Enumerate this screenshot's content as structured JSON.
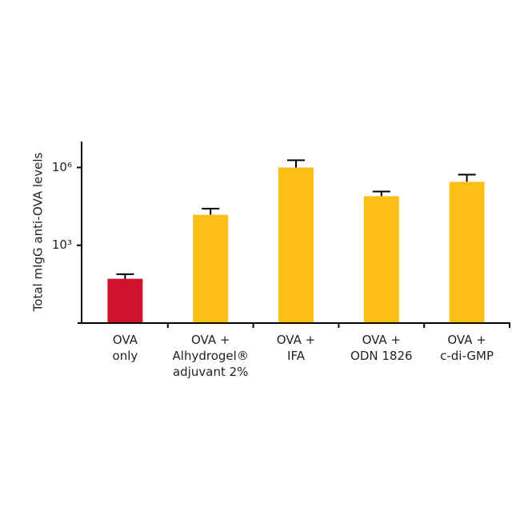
{
  "chart_data": {
    "type": "bar",
    "y_label": "Total mIgG anti-OVA levels",
    "categories": [
      [
        "OVA",
        "only"
      ],
      [
        "OVA +",
        "Alhydrogel®",
        "adjuvant 2%"
      ],
      [
        "OVA +",
        "IFA"
      ],
      [
        "OVA +",
        "ODN 1826"
      ],
      [
        "OVA +",
        "c-di-GMP"
      ]
    ],
    "values": [
      51,
      15000,
      1000000,
      78000,
      280000
    ],
    "errors": [
      26,
      11000,
      900000,
      40000,
      250000
    ],
    "colors": [
      "#d0122c",
      "#fbbf17",
      "#fbbf17",
      "#fbbf17",
      "#fbbf17"
    ],
    "log_scale": true,
    "ylim": [
      1,
      10000000
    ],
    "yticks": [
      {
        "value": 1000,
        "label": "10³"
      },
      {
        "value": 1000000,
        "label": "10⁶"
      }
    ]
  }
}
